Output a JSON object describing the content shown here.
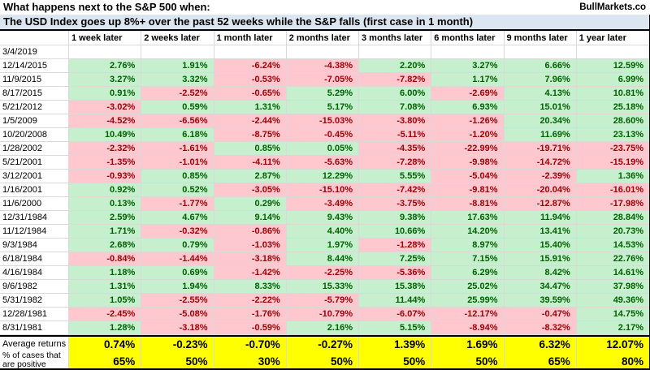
{
  "header": {
    "title_line1": "What happens next to the S&P 500 when:",
    "title_line2": "The USD Index goes up 8%+ over the past 52 weeks while the S&P falls (first case in 1 month)",
    "brand": "BullMarkets.co"
  },
  "chart_data": {
    "type": "table",
    "title": "What happens next to the S&P 500 when: The USD Index goes up 8%+ over the past 52 weeks while the S&P falls (first case in 1 month)",
    "columns": [
      "1 week later",
      "2 weeks later",
      "1 month later",
      "2 months later",
      "3 months later",
      "6 months later",
      "9 months later",
      "1 year later"
    ],
    "rows": [
      {
        "date": "3/4/2019",
        "values": [
          "",
          "",
          "",
          "",
          "",
          "",
          "",
          ""
        ]
      },
      {
        "date": "12/14/2015",
        "values": [
          "2.76%",
          "1.91%",
          "-6.24%",
          "-4.38%",
          "2.20%",
          "3.27%",
          "6.66%",
          "12.59%"
        ]
      },
      {
        "date": "11/9/2015",
        "values": [
          "3.27%",
          "3.32%",
          "-0.53%",
          "-7.05%",
          "-7.82%",
          "1.17%",
          "7.96%",
          "6.99%"
        ]
      },
      {
        "date": "8/17/2015",
        "values": [
          "0.91%",
          "-2.52%",
          "-0.65%",
          "5.29%",
          "6.00%",
          "-2.69%",
          "4.13%",
          "10.81%"
        ]
      },
      {
        "date": "5/21/2012",
        "values": [
          "-3.02%",
          "0.59%",
          "1.31%",
          "5.17%",
          "7.08%",
          "6.93%",
          "15.01%",
          "25.18%"
        ]
      },
      {
        "date": "1/5/2009",
        "values": [
          "-4.52%",
          "-6.56%",
          "-2.44%",
          "-15.03%",
          "-3.80%",
          "-1.26%",
          "20.34%",
          "28.60%"
        ]
      },
      {
        "date": "10/20/2008",
        "values": [
          "10.49%",
          "6.18%",
          "-8.75%",
          "-0.45%",
          "-5.11%",
          "-1.20%",
          "11.69%",
          "23.13%"
        ]
      },
      {
        "date": "1/28/2002",
        "values": [
          "-2.32%",
          "-1.61%",
          "0.85%",
          "0.05%",
          "-4.35%",
          "-22.99%",
          "-19.71%",
          "-23.75%"
        ]
      },
      {
        "date": "5/21/2001",
        "values": [
          "-1.35%",
          "-1.01%",
          "-4.11%",
          "-5.63%",
          "-7.28%",
          "-9.98%",
          "-14.72%",
          "-15.19%"
        ]
      },
      {
        "date": "3/12/2001",
        "values": [
          "-0.93%",
          "0.85%",
          "2.87%",
          "12.29%",
          "5.55%",
          "-5.04%",
          "-2.39%",
          "1.36%"
        ]
      },
      {
        "date": "1/16/2001",
        "values": [
          "0.92%",
          "0.52%",
          "-3.05%",
          "-15.10%",
          "-7.42%",
          "-9.81%",
          "-20.04%",
          "-16.01%"
        ]
      },
      {
        "date": "11/6/2000",
        "values": [
          "0.13%",
          "-1.77%",
          "0.29%",
          "-3.49%",
          "-3.75%",
          "-8.81%",
          "-12.87%",
          "-17.98%"
        ]
      },
      {
        "date": "12/31/1984",
        "values": [
          "2.59%",
          "4.67%",
          "9.14%",
          "9.43%",
          "9.38%",
          "17.63%",
          "11.94%",
          "28.84%"
        ]
      },
      {
        "date": "11/12/1984",
        "values": [
          "1.71%",
          "-0.32%",
          "-0.86%",
          "4.40%",
          "10.66%",
          "14.20%",
          "13.41%",
          "20.73%"
        ]
      },
      {
        "date": "9/3/1984",
        "values": [
          "2.68%",
          "0.79%",
          "-1.03%",
          "1.97%",
          "-1.28%",
          "8.97%",
          "15.40%",
          "14.53%"
        ]
      },
      {
        "date": "6/18/1984",
        "values": [
          "-0.84%",
          "-1.44%",
          "-3.18%",
          "8.44%",
          "7.25%",
          "7.15%",
          "15.91%",
          "22.76%"
        ]
      },
      {
        "date": "4/16/1984",
        "values": [
          "1.18%",
          "0.69%",
          "-1.42%",
          "-2.25%",
          "-5.36%",
          "6.29%",
          "8.42%",
          "14.61%"
        ]
      },
      {
        "date": "9/6/1982",
        "values": [
          "1.31%",
          "1.94%",
          "8.33%",
          "15.33%",
          "15.38%",
          "25.02%",
          "34.47%",
          "37.98%"
        ]
      },
      {
        "date": "5/31/1982",
        "values": [
          "1.05%",
          "-2.55%",
          "-2.22%",
          "-5.79%",
          "11.44%",
          "25.99%",
          "39.59%",
          "49.36%"
        ]
      },
      {
        "date": "12/28/1981",
        "values": [
          "-2.45%",
          "-5.08%",
          "-1.76%",
          "-10.79%",
          "-6.07%",
          "-12.17%",
          "-0.47%",
          "14.75%"
        ]
      },
      {
        "date": "8/31/1981",
        "values": [
          "1.28%",
          "-3.18%",
          "-0.59%",
          "2.16%",
          "5.15%",
          "-8.94%",
          "-8.32%",
          "2.17%"
        ]
      }
    ],
    "summary": {
      "avg_label": "Average returns",
      "avg_values": [
        "0.74%",
        "-0.23%",
        "-0.70%",
        "-0.27%",
        "1.39%",
        "1.69%",
        "6.32%",
        "12.07%"
      ],
      "pct_label_line1": "% of cases that",
      "pct_label_line2": "are positive",
      "pct_values": [
        "65%",
        "50%",
        "30%",
        "50%",
        "50%",
        "50%",
        "65%",
        "80%"
      ]
    }
  },
  "colors": {
    "positive_bg": "#c6efce",
    "positive_text": "#006100",
    "negative_bg": "#ffc7ce",
    "negative_text": "#9c0006",
    "highlight_bg": "#ffff00",
    "title2_bg": "#dce6f1"
  }
}
